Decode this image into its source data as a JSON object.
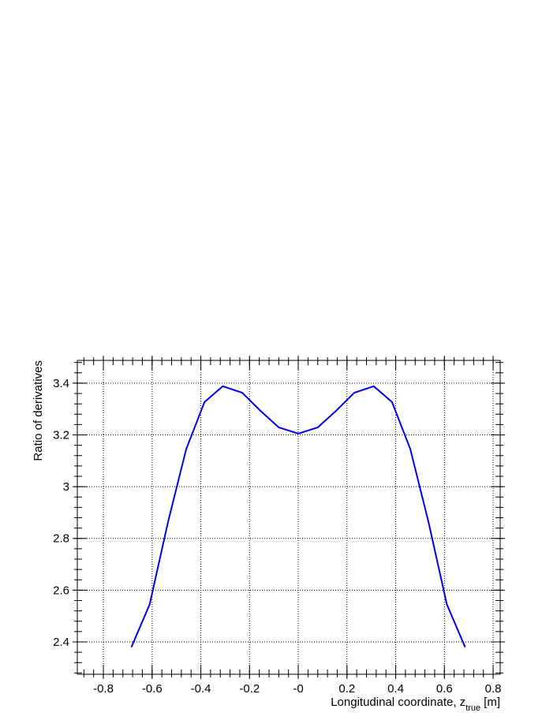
{
  "chart_data": {
    "type": "line",
    "ylabel": "Ratio of derivatives",
    "xlabel": {
      "main": "Longitudinal coordinate, z",
      "subscript": "true",
      "unit": "[m]"
    },
    "x": [
      -0.685,
      -0.61,
      -0.535,
      -0.46,
      -0.385,
      -0.31,
      -0.23,
      -0.155,
      -0.08,
      0,
      0.08,
      0.155,
      0.23,
      0.31,
      0.385,
      0.46,
      0.535,
      0.61,
      0.685
    ],
    "series": [
      {
        "color": "#0000ee",
        "values": [
          2.38,
          2.545,
          2.862,
          3.145,
          3.327,
          3.388,
          3.363,
          3.293,
          3.229,
          3.205,
          3.229,
          3.293,
          3.363,
          3.388,
          3.327,
          3.145,
          2.862,
          2.545,
          2.38
        ]
      }
    ],
    "xlim": [
      -0.907,
      0.829
    ],
    "ylim": [
      2.275,
      3.488
    ],
    "xticks": [
      -0.8,
      -0.6,
      -0.4,
      -0.2,
      {
        "value": 0,
        "label": "-0"
      },
      0.2,
      0.4,
      0.6,
      0.8
    ],
    "yticks": [
      2.4,
      2.6,
      2.8,
      3,
      3.2,
      3.4
    ],
    "grid": true
  }
}
